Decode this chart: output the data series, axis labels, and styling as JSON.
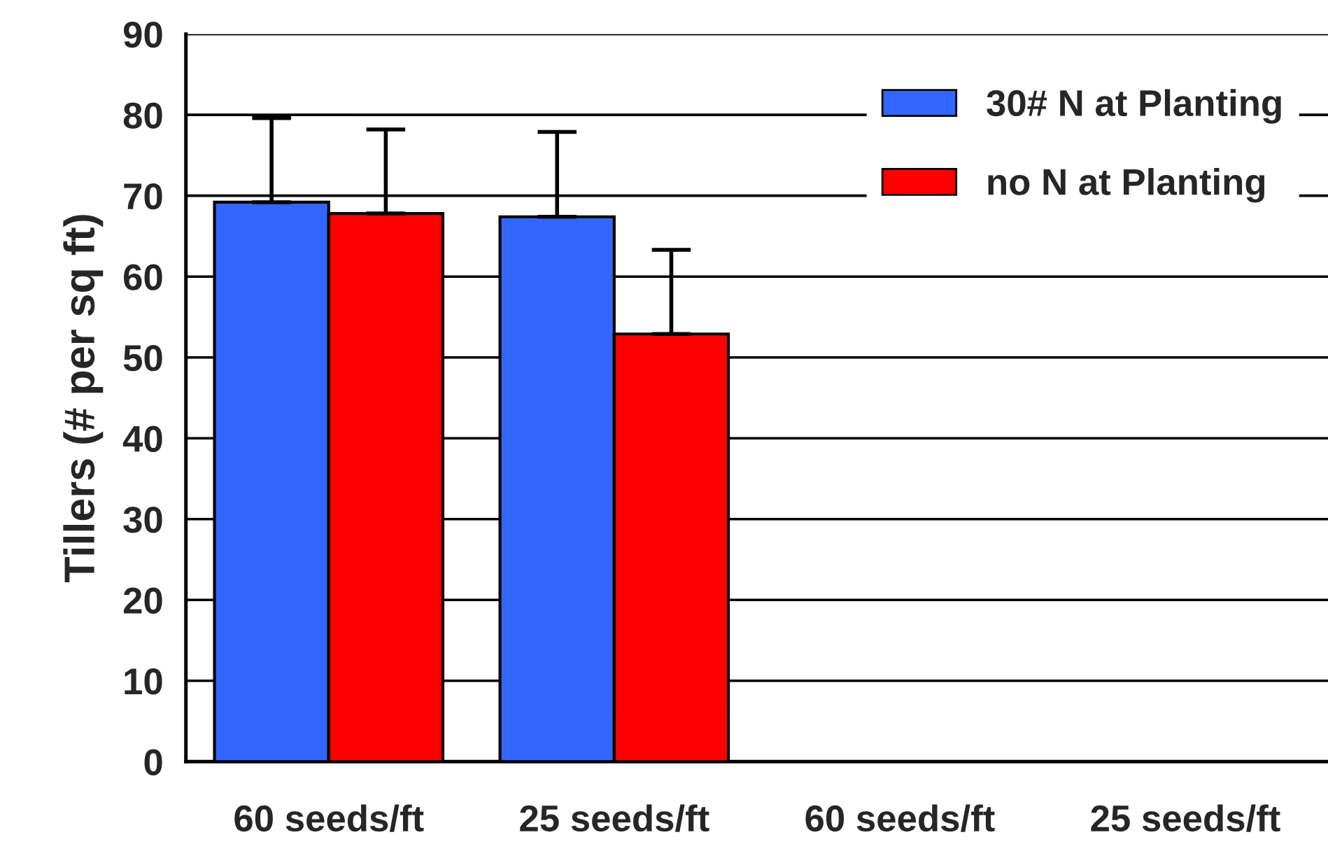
{
  "chart_data": {
    "type": "bar",
    "ylabel": "Tillers (# per sq ft)",
    "categories": [
      "60 seeds/ft",
      "25 seeds/ft",
      "60 seeds/ft",
      "25 seeds/ft"
    ],
    "series": [
      {
        "name": "30# N at Planting",
        "color": "#3366ff",
        "values": [
          69.2,
          67.4,
          null,
          null
        ],
        "errors": [
          [
            69.2,
            79.6
          ],
          [
            67.4,
            77.9
          ],
          null,
          null
        ]
      },
      {
        "name": "no N at Planting",
        "color": "#ff0000",
        "values": [
          67.8,
          52.9,
          null,
          null
        ],
        "errors": [
          [
            67.8,
            78.2
          ],
          [
            52.9,
            63.3
          ],
          null,
          null
        ]
      }
    ],
    "ylim": [
      0,
      90
    ],
    "yticks": [
      0,
      10,
      20,
      30,
      40,
      50,
      60,
      70,
      80,
      90
    ],
    "grid": "y",
    "legend": "top right"
  }
}
